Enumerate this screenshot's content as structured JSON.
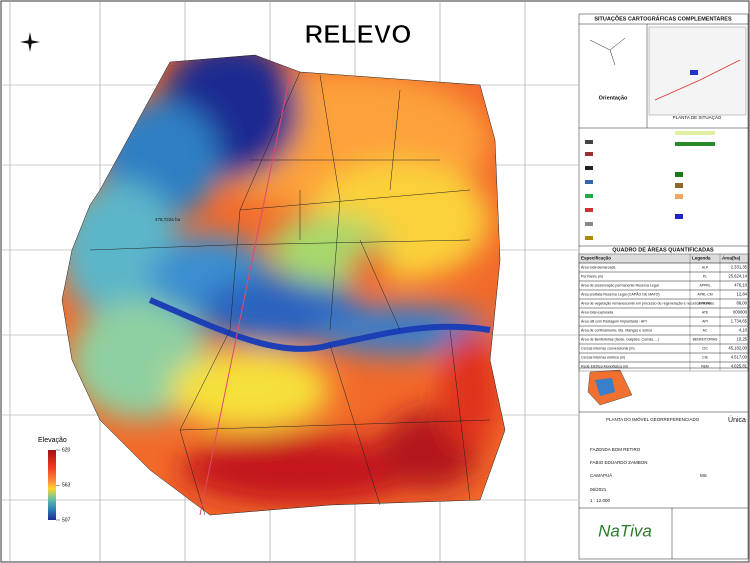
{
  "title": "RELEVO",
  "map": {
    "area_label": "478,7224 ha"
  },
  "elevation_legend": {
    "title": "Elevação",
    "range": [
      507,
      620
    ],
    "ticks": [
      620,
      563,
      507
    ]
  },
  "panel": {
    "header": "SITUAÇÕES CARTOGRÁFICAS COMPLEMENTARES",
    "orientation": "Orientação",
    "situation_plan": "PLANTA DE SITUAÇÃO"
  },
  "table": {
    "title": "QUADRO DE ÁREAS QUANTIFICADAS",
    "columns": [
      "Especificação",
      "Legenda",
      "Área(ha)"
    ],
    "rows": [
      [
        "Área total demarcada",
        "ALP",
        "2.331,35"
      ],
      [
        "Perímetro (m)",
        "PL",
        "25.624,14"
      ],
      [
        "Área de preservação permanente Reserva Legal",
        "APPRL",
        "476,10"
      ],
      [
        "Área proibida Reserva Legal (CAPÃO DE MATO)",
        "APRL-CM",
        "12,84"
      ],
      [
        "Área de vegetação remanescente em processo de regeneração e recursos hídricos",
        "AVR-RH",
        "86,00"
      ],
      [
        "Área total explorada",
        "ATE",
        "000000"
      ],
      [
        "Área útil com Pastagem Implantada - API",
        "API",
        "1.734,65"
      ],
      [
        "Área de confinamento, Sts. Mangas e outros",
        "AC",
        "4,10"
      ],
      [
        "Área de Benfeitorias (Sede, Galpões, Currais, ...)",
        "BENFEITORIAS",
        "10,25"
      ],
      [
        "Cercas internas convencional (m)",
        "CIC",
        "45.182,00"
      ],
      [
        "Cercas internas elétrica (m)",
        "CIE",
        "4.517,00"
      ],
      [
        "Rede Elétrica Monofásica (m)",
        "REM",
        "4.025,81"
      ]
    ]
  },
  "title_block": {
    "drawing": "PLANTA DO IMÓVEL GEORREFERENCIADO",
    "sheet": "Única",
    "property": "FAZENDA BOM RETIRO",
    "owner": "FABIO EDUARDO ZAMBON",
    "municipality": "CAMAPUÃ",
    "state": "MS",
    "date": "06/2021",
    "scale": "1 : 12.000"
  },
  "logo": {
    "text": "NaTiva"
  }
}
